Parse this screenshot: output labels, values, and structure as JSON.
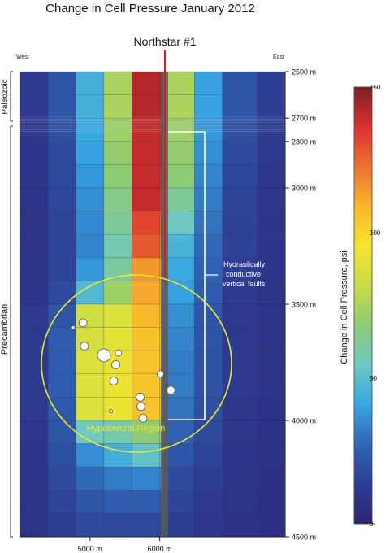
{
  "chart_data": {
    "type": "heatmap",
    "title": "Change in Cell Pressure January 2012",
    "well_label": "Northstar #1",
    "direction_left": "West",
    "direction_right": "East",
    "x_ticks": [
      {
        "value": 5000,
        "label": "5000 m"
      },
      {
        "value": 6000,
        "label": "6000 m"
      }
    ],
    "y_ticks": [
      {
        "value": 2500,
        "label": "2500 m"
      },
      {
        "value": 2700,
        "label": "2700 m"
      },
      {
        "value": 2800,
        "label": "2800 m"
      },
      {
        "value": 3000,
        "label": "3000 m"
      },
      {
        "value": 3500,
        "label": "3500 m"
      },
      {
        "value": 4000,
        "label": "4000 m"
      },
      {
        "value": 4500,
        "label": "4500 m"
      }
    ],
    "xlim": [
      4000,
      7800
    ],
    "ylim": [
      2500,
      4500
    ],
    "well_x": 6050,
    "colorbar": {
      "label": "Change in Cell Pressure, psi",
      "min": 0,
      "max": 150,
      "ticks": [
        {
          "value": 150,
          "label": "150"
        },
        {
          "value": 100,
          "label": "100"
        },
        {
          "value": 50,
          "label": "50"
        },
        {
          "value": 0,
          "label": "0"
        }
      ],
      "stops": [
        "#2b2370",
        "#2d3d93",
        "#2f66b6",
        "#37a6e4",
        "#6cc8c2",
        "#8dcb74",
        "#c8dc48",
        "#f5e62b",
        "#f7b62a",
        "#ec7330",
        "#dd3030",
        "#7d1f24"
      ]
    },
    "formations": [
      {
        "label": "Paleozoic",
        "top": 2500,
        "bottom": 2720
      },
      {
        "label": "Precambrian",
        "top": 2720,
        "bottom": 4500
      }
    ],
    "fault_label_line1": "Hydraulically",
    "fault_label_line2": "conductive",
    "fault_label_line3": "vertical faults",
    "fault": {
      "x": 6300,
      "top": 2800,
      "bottom": 4000,
      "right_x": 6600
    },
    "region_label": "Hypocentral Region",
    "hypocentral_ellipse": {
      "cx": 5400,
      "cy": 3700,
      "rx": 1350,
      "ry": 350
    },
    "column_edges": [
      4000,
      4400,
      4800,
      5200,
      5600,
      6000,
      6050,
      6500,
      6900,
      7400,
      7800
    ],
    "row_edges": [
      2500,
      2600,
      2700,
      2800,
      2900,
      3000,
      3100,
      3200,
      3300,
      3400,
      3500,
      3600,
      3700,
      3800,
      3900,
      4000,
      4100,
      4200,
      4300,
      4400,
      4500
    ],
    "values": [
      [
        12,
        22,
        45,
        75,
        142,
        142,
        75,
        40,
        22,
        14
      ],
      [
        12,
        22,
        45,
        75,
        142,
        142,
        75,
        40,
        22,
        14
      ],
      [
        11,
        20,
        42,
        72,
        140,
        140,
        72,
        38,
        20,
        13
      ],
      [
        10,
        18,
        40,
        70,
        140,
        140,
        70,
        36,
        18,
        12
      ],
      [
        10,
        18,
        38,
        68,
        140,
        138,
        68,
        34,
        17,
        11
      ],
      [
        9,
        17,
        36,
        65,
        140,
        135,
        62,
        32,
        16,
        11
      ],
      [
        9,
        16,
        35,
        62,
        132,
        128,
        55,
        30,
        15,
        10
      ],
      [
        9,
        16,
        34,
        58,
        128,
        122,
        46,
        28,
        15,
        10
      ],
      [
        9,
        16,
        38,
        60,
        115,
        112,
        42,
        26,
        14,
        10
      ],
      [
        10,
        18,
        48,
        72,
        112,
        110,
        40,
        24,
        13,
        9
      ],
      [
        12,
        22,
        84,
        88,
        108,
        108,
        36,
        22,
        12,
        9
      ],
      [
        12,
        24,
        86,
        90,
        106,
        106,
        34,
        22,
        12,
        9
      ],
      [
        12,
        24,
        88,
        92,
        105,
        105,
        32,
        21,
        12,
        9
      ],
      [
        12,
        24,
        88,
        92,
        105,
        105,
        32,
        21,
        12,
        9
      ],
      [
        12,
        23,
        88,
        92,
        105,
        105,
        30,
        20,
        11,
        8
      ],
      [
        11,
        22,
        55,
        58,
        68,
        70,
        26,
        18,
        11,
        8
      ],
      [
        10,
        20,
        36,
        44,
        52,
        52,
        22,
        16,
        10,
        8
      ],
      [
        10,
        18,
        28,
        32,
        34,
        34,
        18,
        14,
        10,
        7
      ],
      [
        9,
        16,
        22,
        24,
        24,
        24,
        16,
        12,
        9,
        7
      ],
      [
        9,
        14,
        18,
        18,
        18,
        18,
        14,
        11,
        8,
        7
      ]
    ],
    "events": [
      {
        "x": 4900,
        "y": 3580,
        "r": 5
      },
      {
        "x": 4920,
        "y": 3680,
        "r": 5
      },
      {
        "x": 4760,
        "y": 3600,
        "r": 2
      },
      {
        "x": 5200,
        "y": 3720,
        "r": 8
      },
      {
        "x": 5410,
        "y": 3710,
        "r": 4
      },
      {
        "x": 5370,
        "y": 3760,
        "r": 5
      },
      {
        "x": 5340,
        "y": 3830,
        "r": 5
      },
      {
        "x": 5720,
        "y": 3900,
        "r": 5
      },
      {
        "x": 5730,
        "y": 3940,
        "r": 5
      },
      {
        "x": 5760,
        "y": 3990,
        "r": 5
      },
      {
        "x": 5300,
        "y": 3960,
        "r": 2
      },
      {
        "x": 6010,
        "y": 3800,
        "r": 4
      },
      {
        "x": 6160,
        "y": 3870,
        "r": 5
      }
    ]
  }
}
